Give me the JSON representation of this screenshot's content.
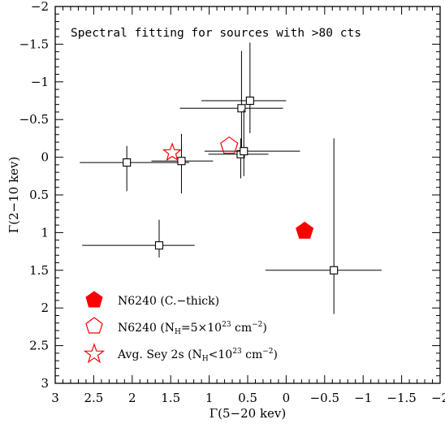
{
  "chart_data": {
    "type": "scatter",
    "title": "Spectral fitting for sources with >80 cts",
    "xlabel": "Γ(5−20 kev)",
    "ylabel": "Γ(2−10 kev)",
    "xlim": [
      3,
      -2
    ],
    "ylim": [
      3,
      -2
    ],
    "x_ticks": [
      3,
      2.5,
      2,
      1.5,
      1,
      0.5,
      0,
      -0.5,
      -1,
      -1.5,
      -2
    ],
    "x_tick_labels": [
      "3",
      "2.5",
      "2",
      "1.5",
      "1",
      "0.5",
      "0",
      "−0.5",
      "−1",
      "−1.5",
      "−2"
    ],
    "y_ticks": [
      -2,
      -1.5,
      -1,
      -0.5,
      0,
      0.5,
      1,
      1.5,
      2,
      2.5,
      3
    ],
    "y_tick_labels": [
      "−2",
      "−1.5",
      "−1",
      "−0.5",
      "0",
      "0.5",
      "1",
      "1.5",
      "2",
      "2.5",
      "3"
    ],
    "grid": false,
    "legend_position": "bottom-left",
    "sources": [
      {
        "x": 2.07,
        "y": 0.07,
        "x_lo": 1.26,
        "x_hi": 2.68,
        "y_lo": -0.15,
        "y_hi": 0.45
      },
      {
        "x": 1.36,
        "y": 0.05,
        "x_lo": 0.95,
        "x_hi": 1.75,
        "y_lo": -0.31,
        "y_hi": 0.48
      },
      {
        "x": 1.65,
        "y": 1.17,
        "x_lo": 1.19,
        "x_hi": 2.65,
        "y_lo": 0.83,
        "y_hi": 1.33
      },
      {
        "x": 0.58,
        "y": -0.65,
        "x_lo": 0.04,
        "x_hi": 1.38,
        "y_lo": -1.41,
        "y_hi": -0.08
      },
      {
        "x": 0.47,
        "y": -0.75,
        "x_lo": 0.0,
        "x_hi": 1.1,
        "y_lo": -1.52,
        "y_hi": -0.32
      },
      {
        "x": 0.59,
        "y": -0.04,
        "x_lo": 0.23,
        "x_hi": 1.01,
        "y_lo": -0.25,
        "y_hi": 0.28
      },
      {
        "x": 0.55,
        "y": -0.08,
        "x_lo": -0.18,
        "x_hi": 1.06,
        "y_lo": -0.63,
        "y_hi": 0.25
      },
      {
        "x": -0.62,
        "y": 1.5,
        "x_lo": -1.24,
        "x_hi": 0.27,
        "y_lo": -0.25,
        "y_hi": 2.08
      }
    ],
    "special_points": [
      {
        "name": "N6240 (C.−thick)",
        "marker": "filled-pentagon",
        "x": -0.24,
        "y": 0.98
      },
      {
        "name": "N6240 (N_H=5×10^23 cm^-2)",
        "marker": "open-pentagon",
        "x": 0.74,
        "y": -0.15
      },
      {
        "name": "Avg. Sey 2s (N_H<10^23 cm^-2)",
        "marker": "open-star",
        "x": 1.48,
        "y": -0.06
      }
    ],
    "legend": {
      "filled_pentagon": "N6240 (C.−thick)",
      "open_pentagon_prefix": "N6240 (N",
      "open_pentagon_sub": "H",
      "open_pentagon_mid": "=5×10",
      "open_pentagon_sup1": "23",
      "open_pentagon_unit": " cm",
      "open_pentagon_sup2": "−2",
      "open_pentagon_end": ")",
      "star_prefix": "Avg. Sey 2s (N",
      "star_sub": "H",
      "star_mid": "<10",
      "star_sup1": "23",
      "star_unit": " cm",
      "star_sup2": "−2",
      "star_end": ")"
    },
    "colors": {
      "marker_red": "#ff0000",
      "ink": "#000000"
    }
  }
}
